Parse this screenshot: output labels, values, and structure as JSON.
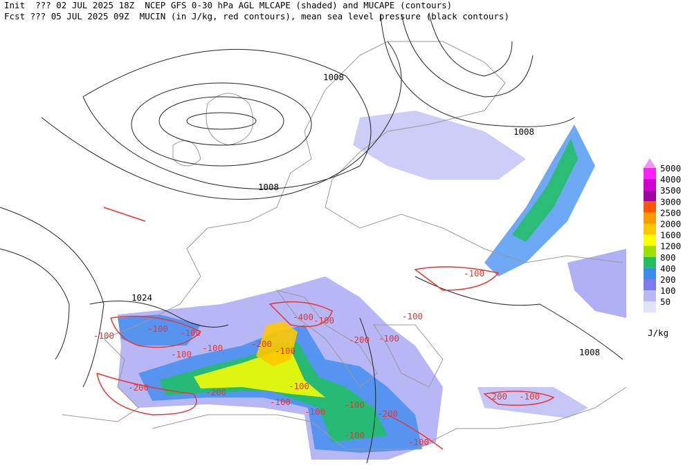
{
  "header": {
    "line1": "Init  ??? 02 JUL 2025 18Z  NCEP GFS 0-30 hPa AGL MLCAPE (shaded) and MUCAPE (contours)",
    "line2": "Fcst ??? 05 JUL 2025 09Z  MUCIN (in J/kg, red contours), mean sea level pressure (black contours)"
  },
  "colorbar": {
    "unit": "J/kg",
    "top_color": "#ee99ee",
    "levels": [
      {
        "label": "5000",
        "color": "#ff22ff"
      },
      {
        "label": "4000",
        "color": "#d000d0"
      },
      {
        "label": "3500",
        "color": "#a000a0"
      },
      {
        "label": "3000",
        "color": "#ff5500"
      },
      {
        "label": "2500",
        "color": "#ff9900"
      },
      {
        "label": "2000",
        "color": "#ffc800"
      },
      {
        "label": "1600",
        "color": "#ffff00"
      },
      {
        "label": "1200",
        "color": "#a0e000"
      },
      {
        "label": "800",
        "color": "#20c060"
      },
      {
        "label": "400",
        "color": "#3c8cf0"
      },
      {
        "label": "200",
        "color": "#7c7cec"
      },
      {
        "label": "100",
        "color": "#b8b8f4"
      },
      {
        "label": "50",
        "color": "#e2e2fa"
      }
    ]
  },
  "pressure_labels": [
    "1008",
    "1008",
    "1008",
    "1024",
    "1008"
  ],
  "cin_labels": [
    "-100",
    "-100",
    "-100",
    "-100",
    "-100",
    "-200",
    "-400",
    "-100",
    "-200",
    "-100",
    "-100",
    "-200",
    "-100",
    "-100",
    "-100",
    "-200",
    "-100",
    "-100",
    "-200",
    "-100",
    "-100",
    "-200",
    "-100",
    "-100"
  ]
}
